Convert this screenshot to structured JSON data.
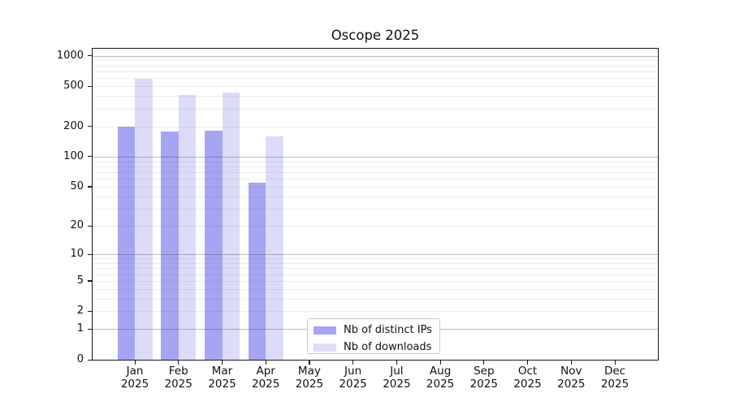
{
  "title": "Oscope 2025",
  "legend": {
    "items": [
      {
        "label": "Nb of distinct IPs"
      },
      {
        "label": "Nb of downloads"
      }
    ]
  },
  "chart_data": {
    "type": "bar",
    "title": "Oscope 2025",
    "categories": [
      "Jan",
      "Feb",
      "Mar",
      "Apr",
      "May",
      "Jun",
      "Jul",
      "Aug",
      "Sep",
      "Oct",
      "Nov",
      "Dec"
    ],
    "year": "2025",
    "series": [
      {
        "name": "Nb of distinct IPs",
        "color": "#a5a5f3",
        "values": [
          197,
          177,
          180,
          55,
          null,
          null,
          null,
          null,
          null,
          null,
          null,
          null
        ]
      },
      {
        "name": "Nb of downloads",
        "color": "#dcdcf9",
        "values": [
          590,
          408,
          430,
          160,
          null,
          null,
          null,
          null,
          null,
          null,
          null,
          null
        ]
      }
    ],
    "yscale": "log1p",
    "yticks": [
      0,
      1,
      2,
      5,
      10,
      20,
      50,
      100,
      200,
      500,
      1000
    ],
    "ylim": [
      0,
      1170
    ],
    "xlabel": "",
    "ylabel": "",
    "grid": "on",
    "legend_position": "lower-center-inside"
  }
}
